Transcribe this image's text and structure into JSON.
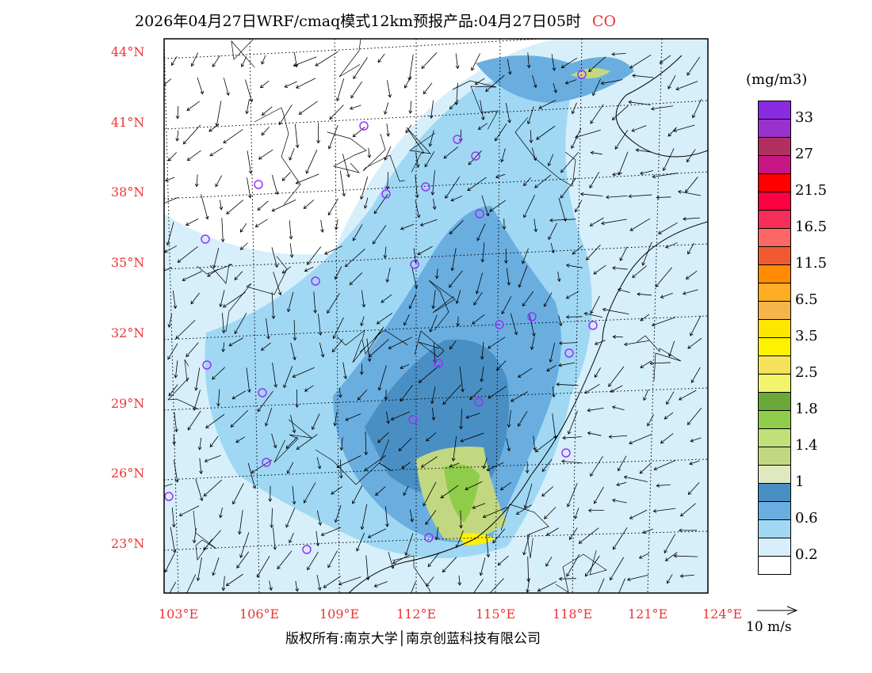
{
  "title": {
    "text": "2026年04月27日WRF/cmaq模式12km预报产品:04月27日05时",
    "species": "CO"
  },
  "axes": {
    "lat_labels": [
      "44°N",
      "41°N",
      "38°N",
      "35°N",
      "32°N",
      "29°N",
      "26°N",
      "23°N"
    ],
    "lon_labels": [
      "103°E",
      "106°E",
      "109°E",
      "112°E",
      "115°E",
      "118°E",
      "121°E",
      "124°E"
    ]
  },
  "colorbar": {
    "unit": "(mg/m3)",
    "colors": [
      "#8a2be2",
      "#9932cc",
      "#b03060",
      "#c71585",
      "#ff0000",
      "#ff0040",
      "#f72e5a",
      "#ff6666",
      "#f05a30",
      "#ff8c00",
      "#ffad24",
      "#f5b54a",
      "#ffe600",
      "#fff200",
      "#f4e35a",
      "#f2f56a",
      "#6aa83a",
      "#8fcc4a",
      "#c2e07a",
      "#c2d880",
      "#dfe8c0",
      "#4a8fc4",
      "#6aaee0",
      "#a0d8f4",
      "#d6effa",
      "#ffffff"
    ],
    "labels": [
      "33",
      "27",
      "21.5",
      "16.5",
      "11.5",
      "6.5",
      "3.5",
      "2.5",
      "1.8",
      "1.4",
      "1",
      "0.6",
      "0.2"
    ]
  },
  "wind_reference": "10 m/s",
  "copyright": "版权所有:南京大学│南京创蓝科技有限公司"
}
